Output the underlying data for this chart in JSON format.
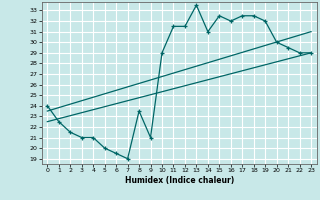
{
  "xlabel": "Humidex (Indice chaleur)",
  "bg_color": "#c8e8e8",
  "grid_color": "#ffffff",
  "line_color": "#006666",
  "xlim": [
    -0.5,
    23.5
  ],
  "ylim": [
    18.5,
    33.8
  ],
  "yticks": [
    19,
    20,
    21,
    22,
    23,
    24,
    25,
    26,
    27,
    28,
    29,
    30,
    31,
    32,
    33
  ],
  "xticks": [
    0,
    1,
    2,
    3,
    4,
    5,
    6,
    7,
    8,
    9,
    10,
    11,
    12,
    13,
    14,
    15,
    16,
    17,
    18,
    19,
    20,
    21,
    22,
    23
  ],
  "zigzag_x": [
    0,
    1,
    2,
    3,
    4,
    5,
    6,
    7,
    8,
    9,
    10,
    11,
    12,
    13,
    14,
    15,
    16,
    17,
    18,
    19,
    20,
    21,
    22,
    23
  ],
  "zigzag_y": [
    24,
    22.5,
    21.5,
    21,
    21,
    20,
    19.5,
    19,
    23.5,
    21,
    29,
    31.5,
    31.5,
    33.5,
    31,
    32.5,
    32,
    32.5,
    32.5,
    32,
    30,
    29.5,
    29,
    29
  ],
  "line1_x": [
    0,
    23
  ],
  "line1_y": [
    22.5,
    29.0
  ],
  "line2_x": [
    0,
    23
  ],
  "line2_y": [
    23.5,
    31.0
  ]
}
